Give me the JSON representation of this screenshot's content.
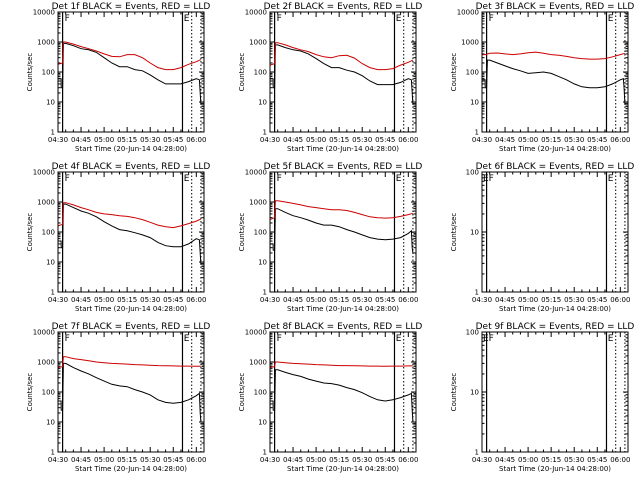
{
  "chart_data": [
    {
      "type": "line",
      "title": "Det 1f BLACK = Events, RED = LLD",
      "ylabel": "Counts/sec",
      "xlabel": "Start Time (20-Jun-14 04:28:00)",
      "x_ticks": [
        "04:30",
        "04:45",
        "05:00",
        "05:15",
        "05:30",
        "05:45",
        "06:00"
      ],
      "y_ticks": [
        "1",
        "10",
        "100",
        "1000",
        "10000"
      ],
      "xlim": [
        0,
        95
      ],
      "ylim": [
        1,
        10000
      ],
      "y_scale": "log",
      "flags": [
        "E",
        "F"
      ],
      "has_data": true,
      "vlines_solid": [
        3,
        81
      ],
      "vlines_dotted": [
        87,
        93
      ],
      "series": [
        {
          "name": "Events",
          "color": "#000000",
          "x": [
            0,
            2,
            2.1,
            3,
            3.5,
            5,
            10,
            15,
            20,
            25,
            30,
            35,
            40,
            45,
            50,
            55,
            60,
            65,
            70,
            75,
            80,
            85,
            90,
            92,
            92.5,
            93
          ],
          "y": [
            60,
            60,
            30,
            30,
            900,
            900,
            750,
            600,
            550,
            450,
            300,
            200,
            150,
            150,
            120,
            110,
            80,
            55,
            40,
            40,
            40,
            48,
            60,
            55,
            20,
            8
          ]
        },
        {
          "name": "LLD",
          "color": "#cc0000",
          "x": [
            0,
            3,
            3.5,
            5,
            10,
            15,
            20,
            25,
            30,
            35,
            40,
            45,
            50,
            55,
            60,
            65,
            70,
            75,
            80,
            85,
            90,
            93
          ],
          "y": [
            180,
            200,
            1000,
            1000,
            850,
            700,
            600,
            500,
            400,
            330,
            320,
            380,
            380,
            300,
            200,
            140,
            120,
            120,
            140,
            180,
            220,
            260
          ]
        }
      ]
    },
    {
      "type": "line",
      "title": "Det 2f BLACK = Events, RED = LLD",
      "ylabel": "Counts/sec",
      "xlabel": "Start Time (20-Jun-14 04:28:00)",
      "x_ticks": [
        "04:30",
        "04:45",
        "05:00",
        "05:15",
        "05:30",
        "05:45",
        "06:00"
      ],
      "y_ticks": [
        "1",
        "10",
        "100",
        "1000",
        "10000"
      ],
      "xlim": [
        0,
        95
      ],
      "ylim": [
        1,
        10000
      ],
      "y_scale": "log",
      "flags": [
        "E",
        "F"
      ],
      "has_data": true,
      "vlines_solid": [
        3,
        81
      ],
      "vlines_dotted": [
        87,
        93
      ],
      "series": [
        {
          "name": "Events",
          "color": "#000000",
          "x": [
            0,
            2,
            2.1,
            3,
            3.5,
            5,
            10,
            15,
            20,
            25,
            30,
            35,
            40,
            45,
            50,
            55,
            60,
            65,
            70,
            75,
            80,
            85,
            90,
            92,
            92.5,
            93
          ],
          "y": [
            60,
            60,
            30,
            30,
            800,
            800,
            650,
            550,
            500,
            400,
            280,
            190,
            140,
            140,
            115,
            100,
            75,
            50,
            38,
            38,
            38,
            45,
            60,
            55,
            20,
            8
          ]
        },
        {
          "name": "LLD",
          "color": "#cc0000",
          "x": [
            0,
            3,
            3.5,
            5,
            10,
            15,
            20,
            25,
            30,
            35,
            40,
            45,
            50,
            55,
            60,
            65,
            70,
            75,
            80,
            85,
            90,
            93
          ],
          "y": [
            170,
            190,
            950,
            950,
            800,
            650,
            550,
            480,
            380,
            320,
            300,
            350,
            360,
            290,
            190,
            140,
            120,
            120,
            130,
            170,
            210,
            250
          ]
        }
      ]
    },
    {
      "type": "line",
      "title": "Det 3f BLACK = Events, RED = LLD",
      "ylabel": "Counts/sec",
      "xlabel": "Start Time (20-Jun-14 04:28:00)",
      "x_ticks": [
        "04:30",
        "04:45",
        "05:00",
        "05:15",
        "05:30",
        "05:45",
        "06:00"
      ],
      "y_ticks": [
        "1",
        "10",
        "100",
        "1000",
        "10000"
      ],
      "xlim": [
        0,
        95
      ],
      "ylim": [
        1,
        10000
      ],
      "y_scale": "log",
      "flags": [
        "E",
        "F"
      ],
      "has_data": true,
      "vlines_solid": [
        3,
        81
      ],
      "vlines_dotted": [
        87,
        93
      ],
      "series": [
        {
          "name": "Events",
          "color": "#000000",
          "x": [
            0,
            2,
            2.1,
            3,
            3.5,
            5,
            10,
            15,
            20,
            25,
            30,
            35,
            40,
            45,
            50,
            55,
            60,
            65,
            70,
            75,
            80,
            85,
            90,
            92,
            92.5,
            93
          ],
          "y": [
            55,
            55,
            30,
            30,
            250,
            250,
            200,
            160,
            130,
            110,
            90,
            95,
            100,
            90,
            70,
            55,
            40,
            32,
            30,
            30,
            32,
            40,
            55,
            60,
            25,
            8
          ]
        },
        {
          "name": "LLD",
          "color": "#cc0000",
          "x": [
            0,
            3,
            3.5,
            5,
            10,
            15,
            20,
            25,
            30,
            35,
            40,
            45,
            50,
            55,
            60,
            65,
            70,
            75,
            80,
            85,
            90,
            93
          ],
          "y": [
            380,
            380,
            400,
            420,
            430,
            400,
            380,
            400,
            440,
            460,
            420,
            380,
            360,
            330,
            300,
            280,
            270,
            270,
            280,
            320,
            380,
            420
          ]
        }
      ]
    },
    {
      "type": "line",
      "title": "Det 4f BLACK = Events, RED = LLD",
      "ylabel": "Counts/sec",
      "xlabel": "Start Time (20-Jun-14 04:28:00)",
      "x_ticks": [
        "04:30",
        "04:45",
        "05:00",
        "05:15",
        "05:30",
        "05:45",
        "06:00"
      ],
      "y_ticks": [
        "1",
        "10",
        "100",
        "1000",
        "10000"
      ],
      "xlim": [
        0,
        95
      ],
      "ylim": [
        1,
        10000
      ],
      "y_scale": "log",
      "flags": [
        "E",
        "F"
      ],
      "has_data": true,
      "vlines_solid": [
        3,
        81
      ],
      "vlines_dotted": [
        87,
        93
      ],
      "series": [
        {
          "name": "Events",
          "color": "#000000",
          "x": [
            0,
            2,
            2.1,
            3,
            3.5,
            5,
            10,
            15,
            20,
            25,
            30,
            35,
            40,
            45,
            50,
            55,
            60,
            65,
            70,
            75,
            80,
            85,
            90,
            92,
            92.5,
            93
          ],
          "y": [
            50,
            50,
            30,
            30,
            850,
            850,
            650,
            500,
            420,
            320,
            220,
            160,
            120,
            110,
            95,
            80,
            65,
            45,
            35,
            32,
            32,
            40,
            60,
            55,
            20,
            8
          ]
        },
        {
          "name": "LLD",
          "color": "#cc0000",
          "x": [
            0,
            3,
            3.5,
            5,
            10,
            15,
            20,
            25,
            30,
            35,
            40,
            45,
            50,
            55,
            60,
            65,
            70,
            75,
            80,
            85,
            90,
            93
          ],
          "y": [
            160,
            180,
            950,
            950,
            800,
            650,
            550,
            450,
            400,
            380,
            350,
            330,
            300,
            260,
            210,
            170,
            150,
            140,
            160,
            190,
            230,
            270
          ]
        }
      ]
    },
    {
      "type": "line",
      "title": "Det 5f BLACK = Events, RED = LLD",
      "ylabel": "Counts/sec",
      "xlabel": "Start Time (20-Jun-14 04:28:00)",
      "x_ticks": [
        "04:30",
        "04:45",
        "05:00",
        "05:15",
        "05:30",
        "05:45",
        "06:00"
      ],
      "y_ticks": [
        "1",
        "10",
        "100",
        "1000",
        "10000"
      ],
      "xlim": [
        0,
        95
      ],
      "ylim": [
        1,
        10000
      ],
      "y_scale": "log",
      "flags": [
        "E",
        "F"
      ],
      "has_data": true,
      "vlines_solid": [
        3,
        81
      ],
      "vlines_dotted": [
        87,
        93
      ],
      "series": [
        {
          "name": "Events",
          "color": "#000000",
          "x": [
            0,
            2,
            2.1,
            3,
            3.5,
            5,
            10,
            15,
            20,
            25,
            30,
            35,
            40,
            45,
            50,
            55,
            60,
            65,
            70,
            75,
            80,
            85,
            90,
            92,
            92.5,
            93
          ],
          "y": [
            40,
            40,
            25,
            25,
            600,
            600,
            450,
            350,
            300,
            250,
            200,
            170,
            170,
            150,
            120,
            100,
            80,
            65,
            58,
            55,
            58,
            65,
            90,
            110,
            30,
            20
          ]
        },
        {
          "name": "LLD",
          "color": "#cc0000",
          "x": [
            0,
            3,
            3.5,
            5,
            10,
            15,
            20,
            25,
            30,
            35,
            40,
            45,
            50,
            55,
            60,
            65,
            70,
            75,
            80,
            85,
            90,
            93
          ],
          "y": [
            260,
            300,
            1100,
            1100,
            1000,
            900,
            800,
            700,
            650,
            600,
            550,
            550,
            520,
            450,
            380,
            320,
            300,
            290,
            300,
            330,
            380,
            420
          ]
        }
      ]
    },
    {
      "type": "line",
      "title": "Det 6f BLACK = Events, RED = LLD",
      "ylabel": "Counts/sec",
      "xlabel": "Start Time (20-Jun-14 04:28:00)",
      "x_ticks": [
        "04:30",
        "04:45",
        "05:00",
        "05:15",
        "05:30",
        "05:45",
        "06:00"
      ],
      "y_ticks": [
        "1",
        "10",
        "100"
      ],
      "xlim": [
        0,
        95
      ],
      "ylim": [
        1,
        100
      ],
      "y_scale": "log",
      "flags": [
        "E",
        "F"
      ],
      "has_data": false,
      "vlines_solid": [
        3,
        81
      ],
      "vlines_dotted": [
        87,
        93
      ],
      "series": []
    },
    {
      "type": "line",
      "title": "Det 7f BLACK = Events, RED = LLD",
      "ylabel": "Counts/sec",
      "xlabel": "Start Time (20-Jun-14 04:28:00)",
      "x_ticks": [
        "04:30",
        "04:45",
        "05:00",
        "05:15",
        "05:30",
        "05:45",
        "06:00"
      ],
      "y_ticks": [
        "1",
        "10",
        "100",
        "1000",
        "10000"
      ],
      "xlim": [
        0,
        95
      ],
      "ylim": [
        1,
        10000
      ],
      "y_scale": "log",
      "flags": [
        "E",
        "F"
      ],
      "has_data": true,
      "vlines_solid": [
        3,
        81
      ],
      "vlines_dotted": [
        87,
        93
      ],
      "series": [
        {
          "name": "Events",
          "color": "#000000",
          "x": [
            0,
            2,
            2.1,
            3,
            3.5,
            5,
            10,
            15,
            20,
            25,
            30,
            35,
            40,
            45,
            50,
            55,
            60,
            65,
            70,
            75,
            80,
            85,
            90,
            92,
            92.5,
            93
          ],
          "y": [
            50,
            50,
            25,
            25,
            900,
            900,
            650,
            500,
            400,
            300,
            230,
            180,
            160,
            150,
            120,
            100,
            80,
            55,
            45,
            42,
            45,
            55,
            75,
            90,
            20,
            10
          ]
        },
        {
          "name": "LLD",
          "color": "#cc0000",
          "x": [
            0,
            3,
            3.5,
            5,
            10,
            15,
            20,
            25,
            30,
            35,
            40,
            45,
            50,
            55,
            60,
            65,
            70,
            75,
            80,
            85,
            90,
            93
          ],
          "y": [
            650,
            700,
            1500,
            1500,
            1300,
            1200,
            1100,
            1000,
            950,
            900,
            880,
            850,
            820,
            800,
            780,
            760,
            750,
            740,
            730,
            730,
            720,
            720
          ]
        }
      ]
    },
    {
      "type": "line",
      "title": "Det 8f BLACK = Events, RED = LLD",
      "ylabel": "Counts/sec",
      "xlabel": "Start Time (20-Jun-14 04:28:00)",
      "x_ticks": [
        "04:30",
        "04:45",
        "05:00",
        "05:15",
        "05:30",
        "05:45",
        "06:00"
      ],
      "y_ticks": [
        "1",
        "10",
        "100",
        "1000",
        "10000"
      ],
      "xlim": [
        0,
        95
      ],
      "ylim": [
        1,
        10000
      ],
      "y_scale": "log",
      "flags": [
        "E",
        "F"
      ],
      "has_data": true,
      "vlines_solid": [
        3,
        81
      ],
      "vlines_dotted": [
        87,
        93
      ],
      "series": [
        {
          "name": "Events",
          "color": "#000000",
          "x": [
            0,
            2,
            2.1,
            3,
            3.5,
            5,
            10,
            15,
            20,
            25,
            30,
            35,
            40,
            45,
            50,
            55,
            60,
            65,
            70,
            75,
            80,
            85,
            90,
            92,
            92.5,
            93
          ],
          "y": [
            50,
            50,
            25,
            25,
            550,
            550,
            450,
            380,
            330,
            270,
            230,
            200,
            190,
            170,
            140,
            120,
            95,
            70,
            55,
            50,
            55,
            65,
            80,
            90,
            25,
            10
          ]
        },
        {
          "name": "LLD",
          "color": "#cc0000",
          "x": [
            0,
            3,
            3.5,
            5,
            10,
            15,
            20,
            25,
            30,
            35,
            40,
            45,
            50,
            55,
            60,
            65,
            70,
            75,
            80,
            85,
            90,
            93
          ],
          "y": [
            650,
            700,
            1000,
            1000,
            950,
            900,
            870,
            850,
            820,
            800,
            780,
            760,
            760,
            750,
            740,
            730,
            730,
            720,
            730,
            730,
            740,
            740
          ]
        }
      ]
    },
    {
      "type": "line",
      "title": "Det 9f BLACK = Events, RED = LLD",
      "ylabel": "Counts/sec",
      "xlabel": "Start Time (20-Jun-14 04:28:00)",
      "x_ticks": [
        "04:30",
        "04:45",
        "05:00",
        "05:15",
        "05:30",
        "05:45",
        "06:00"
      ],
      "y_ticks": [
        "1",
        "10",
        "100"
      ],
      "xlim": [
        0,
        95
      ],
      "ylim": [
        1,
        100
      ],
      "y_scale": "log",
      "flags": [
        "E",
        "F"
      ],
      "has_data": false,
      "vlines_solid": [
        3,
        81
      ],
      "vlines_dotted": [
        87,
        93
      ],
      "series": []
    }
  ]
}
